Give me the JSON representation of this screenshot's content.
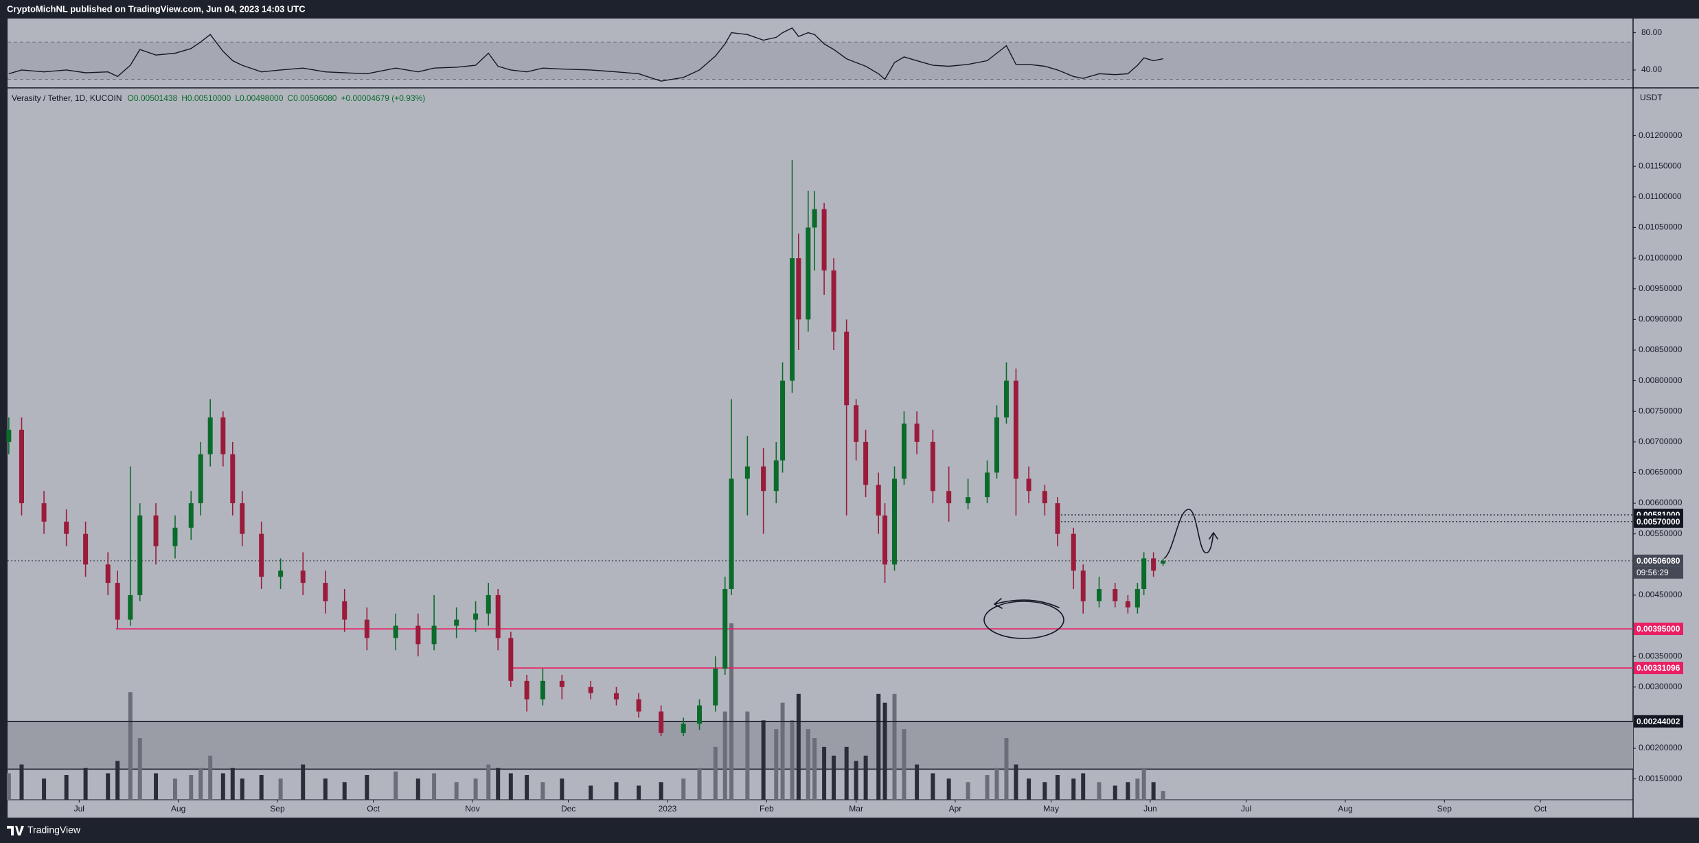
{
  "header": {
    "text": "CryptoMichNL published on TradingView.com, Jun 04, 2023 14:03 UTC"
  },
  "footer": {
    "brand": "TradingView"
  },
  "chart_data": {
    "type": "candlestick",
    "legend": {
      "symbol": "Verasity / Tether, 1D, KUCOIN",
      "values": [
        "O0.00501438",
        "H0.00510000",
        "L0.00498000",
        "C0.00506080",
        "+0.00004679 (+0.93%)"
      ]
    },
    "axis_unit": "USDT",
    "x": [
      -22,
      -18,
      -11,
      -4,
      2,
      9,
      12,
      16,
      19,
      24,
      30,
      35,
      38,
      41,
      45,
      48,
      51,
      57,
      63,
      70,
      77,
      83,
      90,
      99,
      106,
      111,
      118,
      124,
      128,
      131,
      135,
      140,
      145,
      151,
      160,
      168,
      175,
      182,
      189,
      194,
      199,
      202,
      204,
      209,
      214,
      218,
      220,
      223,
      225,
      228,
      230,
      233,
      236,
      240,
      243,
      246,
      250,
      252,
      255,
      258,
      262,
      267,
      272,
      278,
      284,
      287,
      290,
      293,
      297,
      302,
      306,
      311,
      314,
      319,
      324,
      328,
      331,
      333,
      336,
      339
    ],
    "open": [
      0.007,
      0.0072,
      0.006,
      0.0057,
      0.0055,
      0.005,
      0.0047,
      0.0041,
      0.0045,
      0.0058,
      0.0053,
      0.0056,
      0.006,
      0.0068,
      0.0074,
      0.0068,
      0.006,
      0.0055,
      0.0048,
      0.0049,
      0.0047,
      0.0044,
      0.0041,
      0.0038,
      0.004,
      0.0037,
      0.004,
      0.0041,
      0.0042,
      0.0045,
      0.0038,
      0.0031,
      0.0028,
      0.0031,
      0.003,
      0.0029,
      0.0028,
      0.0026,
      0.00225,
      0.0024,
      0.0027,
      0.0033,
      0.0046,
      0.0064,
      0.0066,
      0.0062,
      0.0067,
      0.008,
      0.01,
      0.009,
      0.0105,
      0.0108,
      0.0098,
      0.0088,
      0.0076,
      0.007,
      0.0063,
      0.0058,
      0.005,
      0.0064,
      0.0073,
      0.007,
      0.0062,
      0.006,
      0.0061,
      0.0065,
      0.0074,
      0.008,
      0.0064,
      0.0062,
      0.006,
      0.0055,
      0.0049,
      0.0044,
      0.0046,
      0.0044,
      0.0043,
      0.0046,
      0.0051,
      0.00501438
    ],
    "high": [
      0.0074,
      0.0074,
      0.0062,
      0.0059,
      0.0057,
      0.0052,
      0.0049,
      0.0066,
      0.006,
      0.006,
      0.0058,
      0.0062,
      0.007,
      0.0077,
      0.0075,
      0.007,
      0.0062,
      0.0057,
      0.0051,
      0.0052,
      0.0049,
      0.0046,
      0.0043,
      0.0042,
      0.0042,
      0.0045,
      0.0043,
      0.0044,
      0.0047,
      0.0046,
      0.0039,
      0.0032,
      0.0033,
      0.0032,
      0.0031,
      0.003,
      0.0029,
      0.0027,
      0.0025,
      0.0028,
      0.0035,
      0.0048,
      0.0077,
      0.0071,
      0.0069,
      0.007,
      0.0083,
      0.0116,
      0.0104,
      0.0111,
      0.0111,
      0.0109,
      0.01,
      0.009,
      0.0077,
      0.0072,
      0.0065,
      0.006,
      0.0066,
      0.0075,
      0.0075,
      0.0072,
      0.0066,
      0.0064,
      0.0067,
      0.0076,
      0.0083,
      0.0082,
      0.0066,
      0.0063,
      0.0061,
      0.0056,
      0.005,
      0.0048,
      0.0047,
      0.0045,
      0.0047,
      0.0052,
      0.0052,
      0.0051
    ],
    "low": [
      0.0068,
      0.0058,
      0.0055,
      0.0053,
      0.0048,
      0.0045,
      0.00395,
      0.004,
      0.0044,
      0.005,
      0.0051,
      0.0054,
      0.0058,
      0.0066,
      0.0066,
      0.0058,
      0.0053,
      0.0046,
      0.0046,
      0.0045,
      0.0042,
      0.0039,
      0.0036,
      0.0036,
      0.0035,
      0.0036,
      0.0038,
      0.0039,
      0.004,
      0.0036,
      0.003,
      0.0026,
      0.0027,
      0.0028,
      0.0028,
      0.0027,
      0.0025,
      0.0022,
      0.0022,
      0.0023,
      0.0026,
      0.0032,
      0.0045,
      0.0058,
      0.0055,
      0.006,
      0.0065,
      0.0078,
      0.0085,
      0.0088,
      0.0098,
      0.0094,
      0.0085,
      0.0058,
      0.0067,
      0.0061,
      0.0055,
      0.0047,
      0.0049,
      0.0063,
      0.0068,
      0.006,
      0.0057,
      0.0059,
      0.006,
      0.0064,
      0.0073,
      0.0058,
      0.006,
      0.0058,
      0.0053,
      0.0046,
      0.0042,
      0.0043,
      0.0043,
      0.0042,
      0.0042,
      0.0045,
      0.0048,
      0.00498
    ],
    "close": [
      0.0072,
      0.006,
      0.0057,
      0.0055,
      0.005,
      0.0047,
      0.0041,
      0.0045,
      0.0058,
      0.0053,
      0.0056,
      0.006,
      0.0068,
      0.0074,
      0.0068,
      0.006,
      0.0055,
      0.0048,
      0.0049,
      0.0047,
      0.0044,
      0.0041,
      0.0038,
      0.004,
      0.0037,
      0.004,
      0.0041,
      0.0042,
      0.0045,
      0.0038,
      0.0031,
      0.0028,
      0.0031,
      0.003,
      0.0029,
      0.0028,
      0.0026,
      0.00225,
      0.0024,
      0.0027,
      0.0033,
      0.0046,
      0.0064,
      0.0066,
      0.0062,
      0.0067,
      0.008,
      0.01,
      0.009,
      0.0105,
      0.0108,
      0.0098,
      0.0088,
      0.0076,
      0.007,
      0.0063,
      0.0058,
      0.005,
      0.0064,
      0.0073,
      0.007,
      0.0062,
      0.006,
      0.0061,
      0.0065,
      0.0074,
      0.008,
      0.0064,
      0.0062,
      0.006,
      0.0055,
      0.0049,
      0.0044,
      0.0046,
      0.0044,
      0.0043,
      0.0046,
      0.0051,
      0.0049,
      0.0050608
    ],
    "up_color": "#0b6b2b",
    "down_color": "#9b1b3b",
    "xlim": [
      -22.4,
      486
    ],
    "xticks": [
      {
        "value": 0,
        "label": "Jul"
      },
      {
        "value": 31,
        "label": "Aug"
      },
      {
        "value": 62,
        "label": "Sep"
      },
      {
        "value": 92,
        "label": "Oct"
      },
      {
        "value": 123,
        "label": "Nov"
      },
      {
        "value": 153,
        "label": "Dec"
      },
      {
        "value": 184,
        "label": "2023"
      },
      {
        "value": 215,
        "label": "Feb"
      },
      {
        "value": 243,
        "label": "Mar"
      },
      {
        "value": 274,
        "label": "Apr"
      },
      {
        "value": 304,
        "label": "May"
      },
      {
        "value": 335,
        "label": "Jun"
      },
      {
        "value": 365,
        "label": "Jul"
      },
      {
        "value": 396,
        "label": "Aug"
      },
      {
        "value": 427,
        "label": "Sep"
      },
      {
        "value": 457,
        "label": "Oct"
      }
    ],
    "ylim": [
      0.00116,
      0.01278
    ],
    "yticks": [
      {
        "value": 0.0015,
        "label": "0.00150000"
      },
      {
        "value": 0.002,
        "label": "0.00200000"
      },
      {
        "value": 0.003,
        "label": "0.00300000"
      },
      {
        "value": 0.0035,
        "label": "0.00350000"
      },
      {
        "value": 0.0045,
        "label": "0.00450000"
      },
      {
        "value": 0.0055,
        "label": "0.00550000"
      },
      {
        "value": 0.006,
        "label": "0.00600000"
      },
      {
        "value": 0.0065,
        "label": "0.00650000"
      },
      {
        "value": 0.007,
        "label": "0.00700000"
      },
      {
        "value": 0.0075,
        "label": "0.00750000"
      },
      {
        "value": 0.008,
        "label": "0.00800000"
      },
      {
        "value": 0.0085,
        "label": "0.00850000"
      },
      {
        "value": 0.009,
        "label": "0.00900000"
      },
      {
        "value": 0.0095,
        "label": "0.00950000"
      },
      {
        "value": 0.01,
        "label": "0.01000000"
      },
      {
        "value": 0.0105,
        "label": "0.01050000"
      },
      {
        "value": 0.011,
        "label": "0.01100000"
      },
      {
        "value": 0.0115,
        "label": "0.01150000"
      },
      {
        "value": 0.012,
        "label": "0.01200000"
      }
    ],
    "grid": false,
    "volume": {
      "values": [
        15,
        20,
        12,
        14,
        18,
        15,
        22,
        61,
        35,
        15,
        12,
        14,
        18,
        25,
        15,
        18,
        12,
        14,
        12,
        20,
        12,
        10,
        14,
        16,
        12,
        15,
        10,
        12,
        20,
        18,
        15,
        14,
        10,
        12,
        8,
        10,
        8,
        10,
        12,
        18,
        30,
        50,
        100,
        50,
        45,
        40,
        55,
        45,
        60,
        40,
        35,
        30,
        25,
        30,
        22,
        25,
        60,
        55,
        60,
        40,
        20,
        15,
        12,
        10,
        14,
        18,
        35,
        20,
        12,
        10,
        14,
        12,
        15,
        10,
        8,
        10,
        12,
        18,
        10,
        5
      ],
      "ylim": [
        0,
        100
      ],
      "up_color": "#6b6e78",
      "down_color": "#2a2e39"
    },
    "zone": {
      "from": 0.00244002,
      "to": 0.00166,
      "color": "#9a9da6"
    },
    "price_lines": [
      {
        "value": 0.00581,
        "label": "0.00581000",
        "color": "#131722",
        "style": "dotted",
        "start": 306
      },
      {
        "value": 0.0057,
        "label": "0.00570000",
        "color": "#131722",
        "style": "dotted",
        "start": 306
      },
      {
        "value": 0.0050608,
        "label": "0.00506080",
        "color": "#454955",
        "style": "dotted",
        "start": -22.4,
        "countdown": "09:56:29"
      },
      {
        "value": 0.00395,
        "label": "0.00395000",
        "color": "#e91e63",
        "style": "solid",
        "start": 11.5
      },
      {
        "value": 0.00331096,
        "label": "0.00331096",
        "color": "#e91e63",
        "style": "solid",
        "start": 135
      },
      {
        "value": 0.00244002,
        "label": "0.00244002",
        "color": "#131722",
        "style": "solid",
        "start": -22.4
      }
    ],
    "rsi": {
      "values": [
        36,
        40,
        38,
        40,
        37,
        38,
        33,
        45,
        62,
        56,
        58,
        63,
        70,
        78,
        60,
        50,
        45,
        38,
        40,
        42,
        38,
        37,
        36,
        42,
        38,
        42,
        43,
        45,
        58,
        44,
        40,
        38,
        42,
        41,
        40,
        38,
        36,
        28,
        32,
        40,
        55,
        68,
        80,
        78,
        72,
        75,
        80,
        85,
        76,
        80,
        78,
        68,
        62,
        52,
        48,
        44,
        36,
        30,
        48,
        54,
        50,
        45,
        44,
        46,
        50,
        58,
        66,
        46,
        46,
        44,
        40,
        33,
        31,
        36,
        35,
        36,
        45,
        53,
        50,
        52
      ],
      "color": "#131722",
      "ylim": [
        20.8,
        95.2
      ],
      "yticks": [
        {
          "value": 80,
          "label": "80.00"
        },
        {
          "value": 40,
          "label": "40.00"
        }
      ],
      "bands": [
        30,
        70
      ]
    }
  }
}
